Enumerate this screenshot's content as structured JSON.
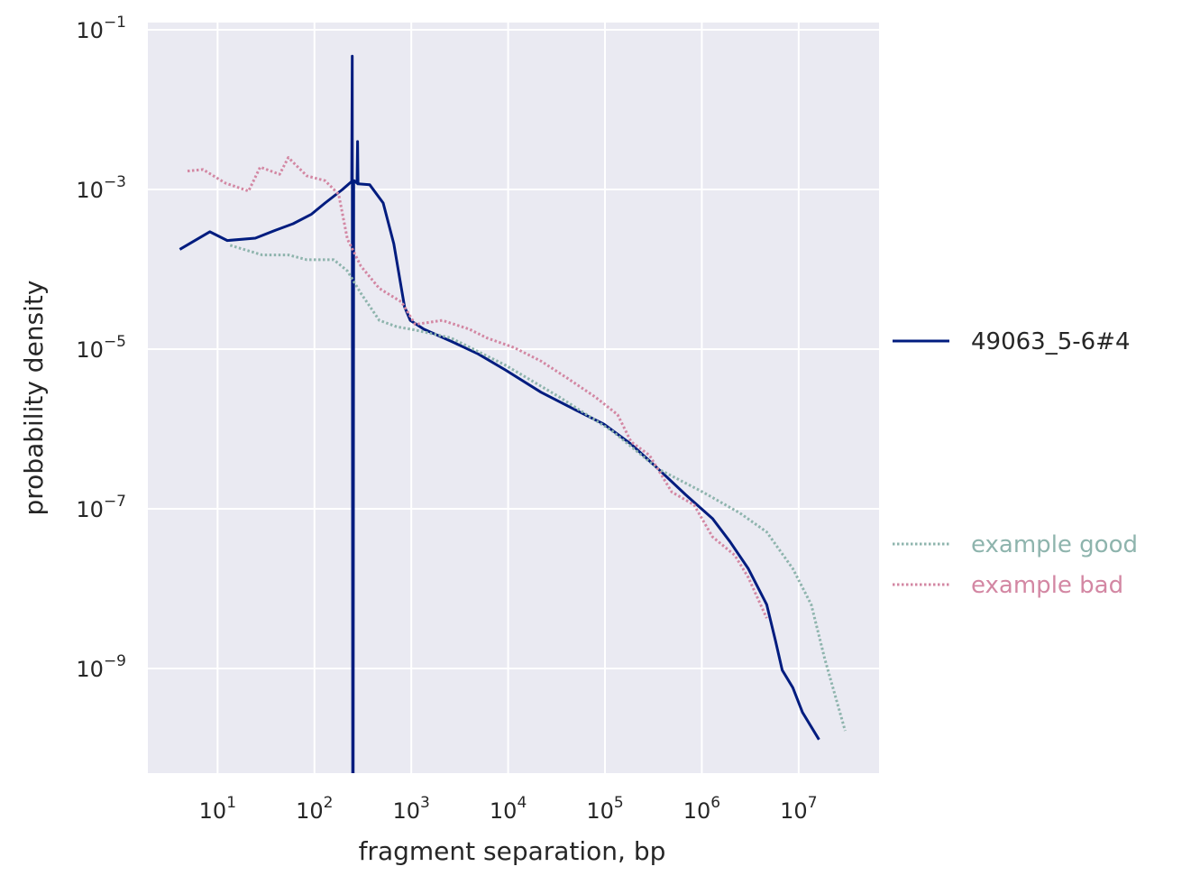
{
  "chart_data": {
    "type": "line",
    "title": "",
    "xlabel": "fragment separation, bp",
    "ylabel": "probability density",
    "xscale": "log",
    "yscale": "log",
    "values_are_log10": true,
    "xlim_log10": [
      0.28,
      7.83
    ],
    "ylim_log10": [
      -10.31,
      -0.91
    ],
    "grid": true,
    "x_ticks": [
      {
        "base": "10",
        "exp": "1",
        "v": 1
      },
      {
        "base": "10",
        "exp": "2",
        "v": 2
      },
      {
        "base": "10",
        "exp": "3",
        "v": 3
      },
      {
        "base": "10",
        "exp": "4",
        "v": 4
      },
      {
        "base": "10",
        "exp": "5",
        "v": 5
      },
      {
        "base": "10",
        "exp": "6",
        "v": 6
      },
      {
        "base": "10",
        "exp": "7",
        "v": 7
      }
    ],
    "y_ticks": [
      {
        "base": "10",
        "exp": "−1",
        "v": -1
      },
      {
        "base": "10",
        "exp": "−3",
        "v": -3
      },
      {
        "base": "10",
        "exp": "−5",
        "v": -5
      },
      {
        "base": "10",
        "exp": "−7",
        "v": -7
      },
      {
        "base": "10",
        "exp": "−9",
        "v": -9
      }
    ],
    "legend_placement": "right",
    "series": [
      {
        "name": "49063_5-6#4",
        "color": "#001c7f",
        "style": "solid",
        "x": [
          0.61,
          0.92,
          1.1,
          1.39,
          1.6,
          1.78,
          1.97,
          2.11,
          2.29,
          2.385,
          2.39,
          2.395,
          2.4,
          2.405,
          2.41,
          2.44,
          2.445,
          2.45,
          2.57,
          2.71,
          2.82,
          2.93,
          2.99,
          3.13,
          3.41,
          3.69,
          3.97,
          4.34,
          4.71,
          4.99,
          5.27,
          5.55,
          5.83,
          6.11,
          6.29,
          6.48,
          6.67,
          6.76,
          6.83,
          6.94,
          7.04,
          7.21
        ],
        "y": [
          -3.75,
          -3.53,
          -3.64,
          -3.61,
          -3.51,
          -3.43,
          -3.31,
          -3.17,
          -3.0,
          -2.9,
          -1.33,
          -10.5,
          -10.5,
          -2.9,
          -2.89,
          -2.92,
          -2.4,
          -2.93,
          -2.94,
          -3.17,
          -3.68,
          -4.47,
          -4.64,
          -4.75,
          -4.9,
          -5.06,
          -5.26,
          -5.54,
          -5.77,
          -5.94,
          -6.19,
          -6.5,
          -6.82,
          -7.12,
          -7.41,
          -7.75,
          -8.2,
          -8.65,
          -9.02,
          -9.24,
          -9.55,
          -9.89
        ]
      },
      {
        "name": "example good",
        "color": "#8eb4ad",
        "style": "dotted",
        "x": [
          1.13,
          1.46,
          1.73,
          1.92,
          2.2,
          2.34,
          2.48,
          2.67,
          2.85,
          3.04,
          3.41,
          3.97,
          4.53,
          5.08,
          5.55,
          6.01,
          6.39,
          6.67,
          6.94,
          7.13,
          7.27,
          7.48
        ],
        "y": [
          -3.7,
          -3.82,
          -3.82,
          -3.88,
          -3.88,
          -4.02,
          -4.3,
          -4.64,
          -4.72,
          -4.76,
          -4.86,
          -5.2,
          -5.6,
          -6.03,
          -6.5,
          -6.79,
          -7.05,
          -7.29,
          -7.75,
          -8.2,
          -8.88,
          -9.78
        ]
      },
      {
        "name": "example bad",
        "color": "#d387a3",
        "style": "dotted",
        "x": [
          0.69,
          0.85,
          1.08,
          1.32,
          1.44,
          1.64,
          1.73,
          1.92,
          2.11,
          2.25,
          2.34,
          2.48,
          2.67,
          2.9,
          3.04,
          3.32,
          3.6,
          3.78,
          4.06,
          4.34,
          4.62,
          4.9,
          5.13,
          5.27,
          5.46,
          5.69,
          5.92,
          6.11,
          6.34,
          6.48,
          6.67
        ],
        "y": [
          -2.77,
          -2.75,
          -2.92,
          -3.02,
          -2.72,
          -2.81,
          -2.6,
          -2.83,
          -2.89,
          -3.06,
          -3.62,
          -3.96,
          -4.24,
          -4.41,
          -4.69,
          -4.64,
          -4.75,
          -4.86,
          -4.98,
          -5.15,
          -5.37,
          -5.6,
          -5.82,
          -6.16,
          -6.33,
          -6.79,
          -6.95,
          -7.35,
          -7.58,
          -7.86,
          -8.37
        ]
      }
    ]
  }
}
